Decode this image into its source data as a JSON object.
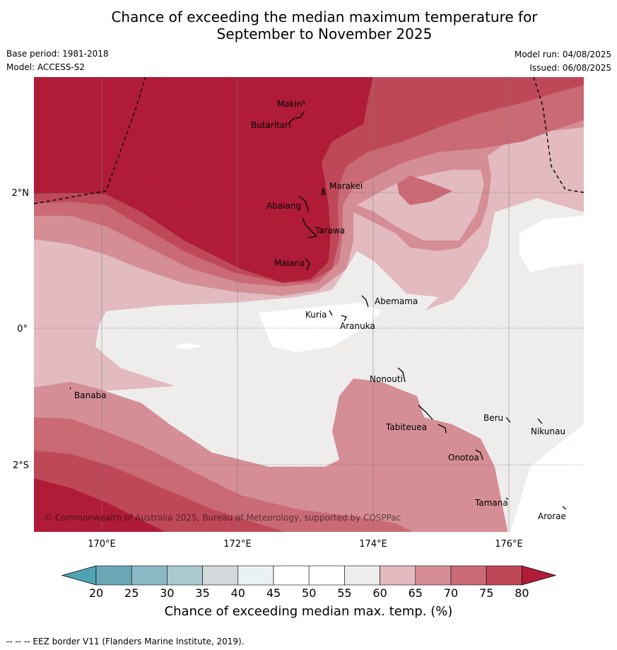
{
  "title_line1": "Chance of exceeding the median maximum temperature for",
  "title_line2": "September to November 2025",
  "base_period": "Base period: 1981-2018",
  "model": "Model: ACCESS-S2",
  "model_run": "Model run: 04/08/2025",
  "issued": "Issued: 06/08/2025",
  "copyright": "© Commonwealth of Australia 2025, Bureau of Meteorology, supported by COSPPac",
  "lon_ticks": [
    {
      "value": 170,
      "label": "170°E"
    },
    {
      "value": 172,
      "label": "172°E"
    },
    {
      "value": 174,
      "label": "174°E"
    },
    {
      "value": 176,
      "label": "176°E"
    }
  ],
  "lat_ticks": [
    {
      "value": 2,
      "label": "2°N"
    },
    {
      "value": 0,
      "label": "0°"
    },
    {
      "value": -2,
      "label": "2°S"
    }
  ],
  "islands": [
    {
      "name": "Makin",
      "lon": 173.0,
      "lat": 3.3
    },
    {
      "name": "Butaritari",
      "lon": 172.9,
      "lat": 3.1
    },
    {
      "name": "Marakei",
      "lon": 173.3,
      "lat": 2.0
    },
    {
      "name": "Abaiang",
      "lon": 173.0,
      "lat": 1.8
    },
    {
      "name": "Tarawa",
      "lon": 173.1,
      "lat": 1.4
    },
    {
      "name": "Maiana",
      "lon": 173.0,
      "lat": 0.95
    },
    {
      "name": "Abemama",
      "lon": 173.9,
      "lat": 0.4
    },
    {
      "name": "Kuria",
      "lon": 173.4,
      "lat": 0.23
    },
    {
      "name": "Aranuka",
      "lon": 173.6,
      "lat": 0.15
    },
    {
      "name": "Banaba",
      "lon": 169.5,
      "lat": -0.88
    },
    {
      "name": "Nonouti",
      "lon": 174.4,
      "lat": -0.65
    },
    {
      "name": "Tabiteuea",
      "lon": 174.8,
      "lat": -1.35
    },
    {
      "name": "Beru",
      "lon": 176.0,
      "lat": -1.33
    },
    {
      "name": "Nikunau",
      "lon": 176.45,
      "lat": -1.35
    },
    {
      "name": "Onotoa",
      "lon": 175.55,
      "lat": -1.8
    },
    {
      "name": "Tamana",
      "lon": 175.98,
      "lat": -2.5
    },
    {
      "name": "Arorae",
      "lon": 176.82,
      "lat": -2.65
    }
  ],
  "colorbar": {
    "title": "Chance of exceeding median max. temp. (%)",
    "ticks": [
      "20",
      "25",
      "30",
      "35",
      "40",
      "45",
      "50",
      "55",
      "60",
      "65",
      "70",
      "75",
      "80"
    ],
    "colors": [
      "#6aa8b8",
      "#8bbac6",
      "#a9c9d0",
      "#d3d8da",
      "#eaf1f3",
      "#ffffff",
      "#ffffff",
      "#efedec",
      "#e2bac0",
      "#d58e96",
      "#c96a75",
      "#bf4858"
    ],
    "under_color": "#4fa3b2",
    "over_color": "#b01c38"
  },
  "footnote": "--  --  -- EEZ border V11 (Flanders Marine Institute, 2019)."
}
